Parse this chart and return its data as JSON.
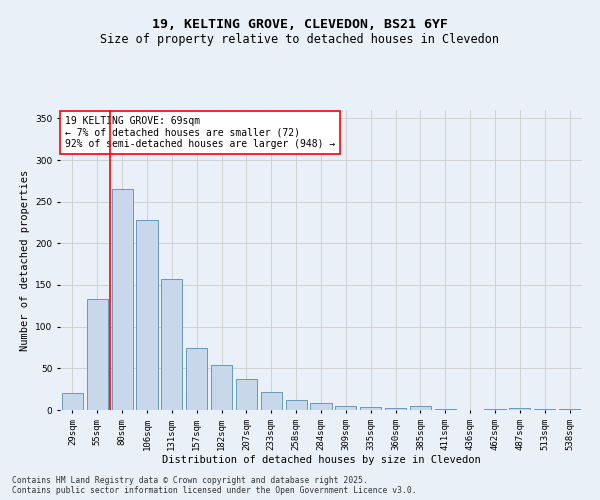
{
  "title_line1": "19, KELTING GROVE, CLEVEDON, BS21 6YF",
  "title_line2": "Size of property relative to detached houses in Clevedon",
  "xlabel": "Distribution of detached houses by size in Clevedon",
  "ylabel": "Number of detached properties",
  "categories": [
    "29sqm",
    "55sqm",
    "80sqm",
    "106sqm",
    "131sqm",
    "157sqm",
    "182sqm",
    "207sqm",
    "233sqm",
    "258sqm",
    "284sqm",
    "309sqm",
    "335sqm",
    "360sqm",
    "385sqm",
    "411sqm",
    "436sqm",
    "462sqm",
    "487sqm",
    "513sqm",
    "538sqm"
  ],
  "values": [
    20,
    133,
    265,
    228,
    157,
    75,
    54,
    37,
    22,
    12,
    9,
    5,
    4,
    3,
    5,
    1,
    0,
    1,
    2,
    1,
    1
  ],
  "bar_color": "#c8d8ea",
  "bar_edge_color": "#6699bb",
  "vline_x": 1.5,
  "vline_color": "red",
  "annotation_text": "19 KELTING GROVE: 69sqm\n← 7% of detached houses are smaller (72)\n92% of semi-detached houses are larger (948) →",
  "annotation_box_color": "white",
  "annotation_box_edge": "red",
  "ylim": [
    0,
    360
  ],
  "yticks": [
    0,
    50,
    100,
    150,
    200,
    250,
    300,
    350
  ],
  "grid_color": "#cccccc",
  "bg_color": "#eaf0f8",
  "footer_line1": "Contains HM Land Registry data © Crown copyright and database right 2025.",
  "footer_line2": "Contains public sector information licensed under the Open Government Licence v3.0.",
  "title_fontsize": 9.5,
  "subtitle_fontsize": 8.5,
  "axis_label_fontsize": 7.5,
  "tick_fontsize": 6.5,
  "annotation_fontsize": 7,
  "footer_fontsize": 5.8
}
